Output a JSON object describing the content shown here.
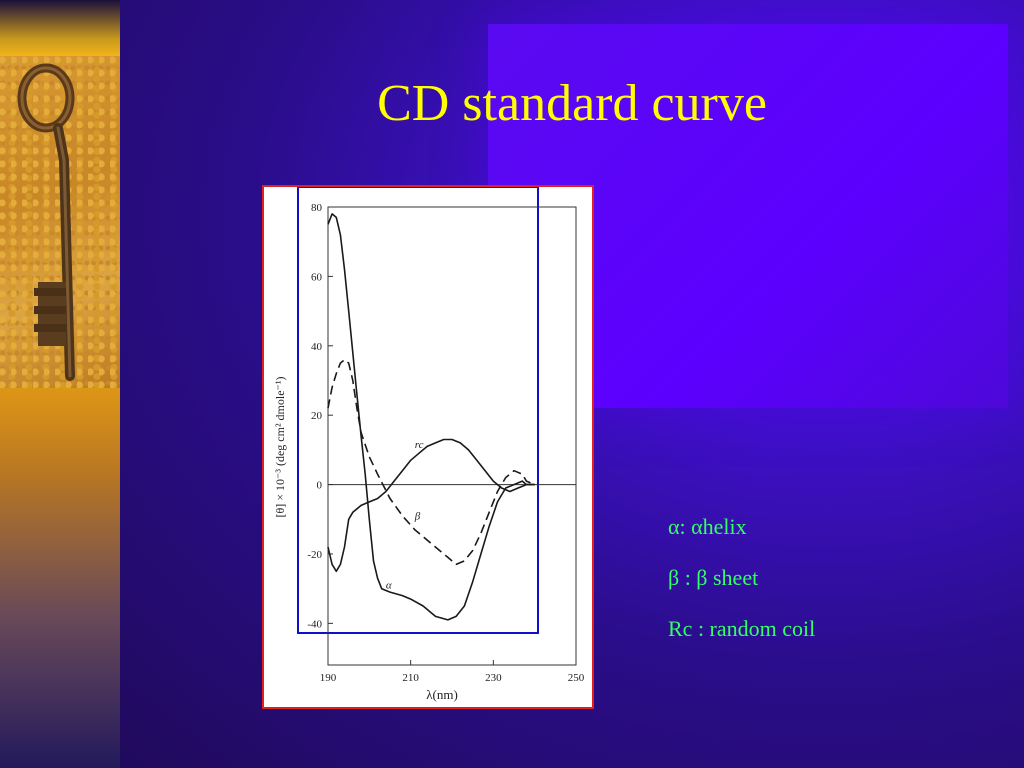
{
  "title": "CD standard curve",
  "legend": [
    {
      "text": "α: αhelix"
    },
    {
      "text": "β : β sheet"
    },
    {
      "text": "Rc : random coil"
    }
  ],
  "colors": {
    "title": "#ffff00",
    "legend": "#33ff66",
    "frame_border": "#e02020",
    "highlight_box": "#1010cc",
    "curve": "#1a1a1a"
  },
  "chart_data": {
    "type": "line",
    "xlabel": "λ(nm)",
    "ylabel": "[θ] × 10⁻³ (deg cm² dmole⁻¹)",
    "xlim": [
      190,
      250
    ],
    "ylim": [
      -50,
      80
    ],
    "x_ticks": [
      190,
      210,
      230,
      250
    ],
    "y_ticks": [
      80,
      60,
      40,
      20,
      0,
      -20,
      -40
    ],
    "y_tick_labels": [
      "80",
      "60",
      "40",
      "20",
      "0",
      "-20",
      "-40"
    ],
    "grid": false,
    "series": [
      {
        "name": "α",
        "style": "solid",
        "x": [
          190,
          191,
          192,
          193,
          194,
          195,
          196,
          197,
          198,
          199,
          200,
          201,
          202,
          203,
          205,
          208,
          210,
          213,
          216,
          219,
          221,
          223,
          225,
          227,
          229,
          231,
          233,
          235,
          237,
          238,
          240
        ],
        "y": [
          75,
          78,
          77,
          72,
          62,
          50,
          38,
          26,
          14,
          3,
          -10,
          -22,
          -27,
          -30,
          -31,
          -32,
          -33,
          -35,
          -38,
          -39,
          -38,
          -35,
          -28,
          -20,
          -12,
          -5,
          -1,
          0,
          1,
          0,
          0
        ]
      },
      {
        "name": "β",
        "style": "dashed",
        "x": [
          190,
          191,
          192,
          193,
          194,
          195,
          196,
          197,
          198,
          200,
          202,
          205,
          208,
          211,
          214,
          217,
          219,
          221,
          223,
          225,
          227,
          229,
          231,
          233,
          235,
          237,
          238,
          240
        ],
        "y": [
          22,
          28,
          32,
          35,
          36,
          35,
          30,
          22,
          15,
          8,
          3,
          -4,
          -9,
          -13,
          -16,
          -19,
          -21,
          -23,
          -22,
          -19,
          -14,
          -8,
          -2,
          2,
          4,
          3,
          1,
          0
        ]
      },
      {
        "name": "rc",
        "style": "solid",
        "x": [
          190,
          191,
          192,
          193,
          194,
          195,
          196,
          198,
          200,
          202,
          204,
          206,
          208,
          210,
          212,
          214,
          216,
          218,
          220,
          222,
          224,
          226,
          228,
          230,
          232,
          234,
          236,
          238,
          240
        ],
        "y": [
          -18,
          -23,
          -25,
          -23,
          -18,
          -10,
          -8,
          -6,
          -5,
          -4,
          -2,
          1,
          4,
          7,
          9,
          11,
          12,
          13,
          13,
          12,
          10,
          7,
          4,
          1,
          -1,
          -2,
          -1,
          0,
          0
        ]
      }
    ],
    "annotations": [
      {
        "text": "rc",
        "x": 211,
        "y": 10.5
      },
      {
        "text": "β",
        "x": 211,
        "y": -10
      },
      {
        "text": "α",
        "x": 204,
        "y": -30
      }
    ]
  }
}
